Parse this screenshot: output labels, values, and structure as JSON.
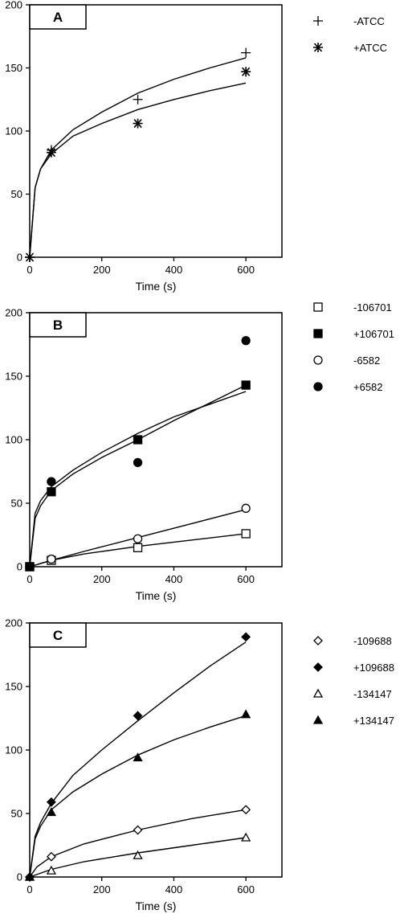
{
  "chart_data": [
    {
      "type": "scatter",
      "panel_label": "A",
      "xlabel": "Time (s)",
      "ylabel": "",
      "xlim": [
        0,
        700
      ],
      "ylim": [
        0,
        200
      ],
      "xticks": [
        0,
        200,
        400,
        600
      ],
      "yticks": [
        0,
        50,
        100,
        150,
        200
      ],
      "xtick_labels": [
        "0",
        "200",
        "400",
        "600"
      ],
      "ytick_labels": [
        "0",
        "50",
        "100",
        "150",
        "200"
      ],
      "grid": false,
      "legend_position": "right",
      "series": [
        {
          "name": "-ATCC",
          "marker": "plus",
          "x": [
            0,
            60,
            300,
            600
          ],
          "y": [
            0,
            85,
            125,
            162
          ],
          "fit": [
            [
              0,
              0
            ],
            [
              15,
              55
            ],
            [
              30,
              70
            ],
            [
              60,
              85
            ],
            [
              120,
              101
            ],
            [
              200,
              115
            ],
            [
              300,
              130
            ],
            [
              400,
              141
            ],
            [
              500,
              150
            ],
            [
              600,
              158
            ]
          ]
        },
        {
          "name": "+ATCC",
          "marker": "asterisk",
          "x": [
            0,
            60,
            300,
            600
          ],
          "y": [
            0,
            83,
            106,
            147
          ],
          "fit": [
            [
              0,
              0
            ],
            [
              15,
              55
            ],
            [
              30,
              70
            ],
            [
              60,
              82
            ],
            [
              120,
              96
            ],
            [
              200,
              106
            ],
            [
              300,
              117
            ],
            [
              400,
              125
            ],
            [
              500,
              132
            ],
            [
              600,
              138
            ]
          ]
        }
      ]
    },
    {
      "type": "scatter",
      "panel_label": "B",
      "xlabel": "Time (s)",
      "ylabel": "",
      "xlim": [
        0,
        700
      ],
      "ylim": [
        0,
        200
      ],
      "xticks": [
        0,
        200,
        400,
        600
      ],
      "yticks": [
        0,
        50,
        100,
        150,
        200
      ],
      "xtick_labels": [
        "0",
        "200",
        "400",
        "600"
      ],
      "ytick_labels": [
        "0",
        "50",
        "100",
        "150",
        "200"
      ],
      "grid": false,
      "legend_position": "right",
      "series": [
        {
          "name": "-106701",
          "marker": "square-open",
          "x": [
            0,
            60,
            300,
            600
          ],
          "y": [
            0,
            5,
            15,
            26
          ],
          "fit": [
            [
              0,
              0
            ],
            [
              60,
              5
            ],
            [
              150,
              10
            ],
            [
              300,
              16
            ],
            [
              450,
              21
            ],
            [
              600,
              26
            ]
          ]
        },
        {
          "name": "+106701",
          "marker": "square-filled",
          "x": [
            0,
            60,
            300,
            600
          ],
          "y": [
            0,
            59,
            100,
            143
          ],
          "fit": [
            [
              0,
              0
            ],
            [
              15,
              38
            ],
            [
              30,
              48
            ],
            [
              60,
              60
            ],
            [
              120,
              73
            ],
            [
              200,
              86
            ],
            [
              300,
              100
            ],
            [
              400,
              115
            ],
            [
              500,
              129
            ],
            [
              600,
              143
            ]
          ]
        },
        {
          "name": "-6582",
          "marker": "circle-open",
          "x": [
            0,
            60,
            300,
            600
          ],
          "y": [
            0,
            6,
            22,
            46
          ],
          "fit": [
            [
              0,
              0
            ],
            [
              60,
              5
            ],
            [
              150,
              12
            ],
            [
              300,
              23
            ],
            [
              450,
              34
            ],
            [
              600,
              45
            ]
          ]
        },
        {
          "name": "+6582",
          "marker": "circle-filled",
          "x": [
            0,
            60,
            300,
            600
          ],
          "y": [
            0,
            67,
            82,
            178
          ],
          "fit": [
            [
              0,
              0
            ],
            [
              15,
              42
            ],
            [
              30,
              52
            ],
            [
              60,
              63
            ],
            [
              120,
              76
            ],
            [
              200,
              90
            ],
            [
              300,
              105
            ],
            [
              400,
              118
            ],
            [
              500,
              128
            ],
            [
              600,
              138
            ]
          ]
        }
      ]
    },
    {
      "type": "scatter",
      "panel_label": "C",
      "xlabel": "Time (s)",
      "ylabel": "",
      "xlim": [
        0,
        700
      ],
      "ylim": [
        0,
        200
      ],
      "xticks": [
        0,
        200,
        400,
        600
      ],
      "yticks": [
        0,
        50,
        100,
        150,
        200
      ],
      "xtick_labels": [
        "0",
        "200",
        "400",
        "600"
      ],
      "ytick_labels": [
        "0",
        "50",
        "100",
        "150",
        "200"
      ],
      "grid": false,
      "legend_position": "right",
      "series": [
        {
          "name": "-109688",
          "marker": "diamond-open",
          "x": [
            0,
            60,
            300,
            600
          ],
          "y": [
            0,
            16,
            37,
            53
          ],
          "fit": [
            [
              0,
              0
            ],
            [
              20,
              8
            ],
            [
              60,
              16
            ],
            [
              150,
              26
            ],
            [
              300,
              37
            ],
            [
              450,
              46
            ],
            [
              600,
              53
            ]
          ]
        },
        {
          "name": "+109688",
          "marker": "diamond-filled",
          "x": [
            0,
            60,
            300,
            600
          ],
          "y": [
            0,
            59,
            127,
            189
          ],
          "fit": [
            [
              0,
              0
            ],
            [
              15,
              32
            ],
            [
              30,
              43
            ],
            [
              60,
              58
            ],
            [
              120,
              80
            ],
            [
              200,
              100
            ],
            [
              300,
              123
            ],
            [
              400,
              145
            ],
            [
              500,
              166
            ],
            [
              600,
              185
            ]
          ]
        },
        {
          "name": "-134147",
          "marker": "triangle-open",
          "x": [
            0,
            60,
            300,
            600
          ],
          "y": [
            0,
            5,
            17,
            31
          ],
          "fit": [
            [
              0,
              0
            ],
            [
              60,
              6
            ],
            [
              150,
              12
            ],
            [
              300,
              19
            ],
            [
              450,
              25
            ],
            [
              600,
              31
            ]
          ]
        },
        {
          "name": "+134147",
          "marker": "triangle-filled",
          "x": [
            0,
            60,
            300,
            600
          ],
          "y": [
            0,
            51,
            94,
            128
          ],
          "fit": [
            [
              0,
              0
            ],
            [
              15,
              30
            ],
            [
              30,
              40
            ],
            [
              60,
              53
            ],
            [
              120,
              67
            ],
            [
              200,
              81
            ],
            [
              300,
              96
            ],
            [
              400,
              108
            ],
            [
              500,
              118
            ],
            [
              600,
              127
            ]
          ]
        }
      ]
    }
  ]
}
